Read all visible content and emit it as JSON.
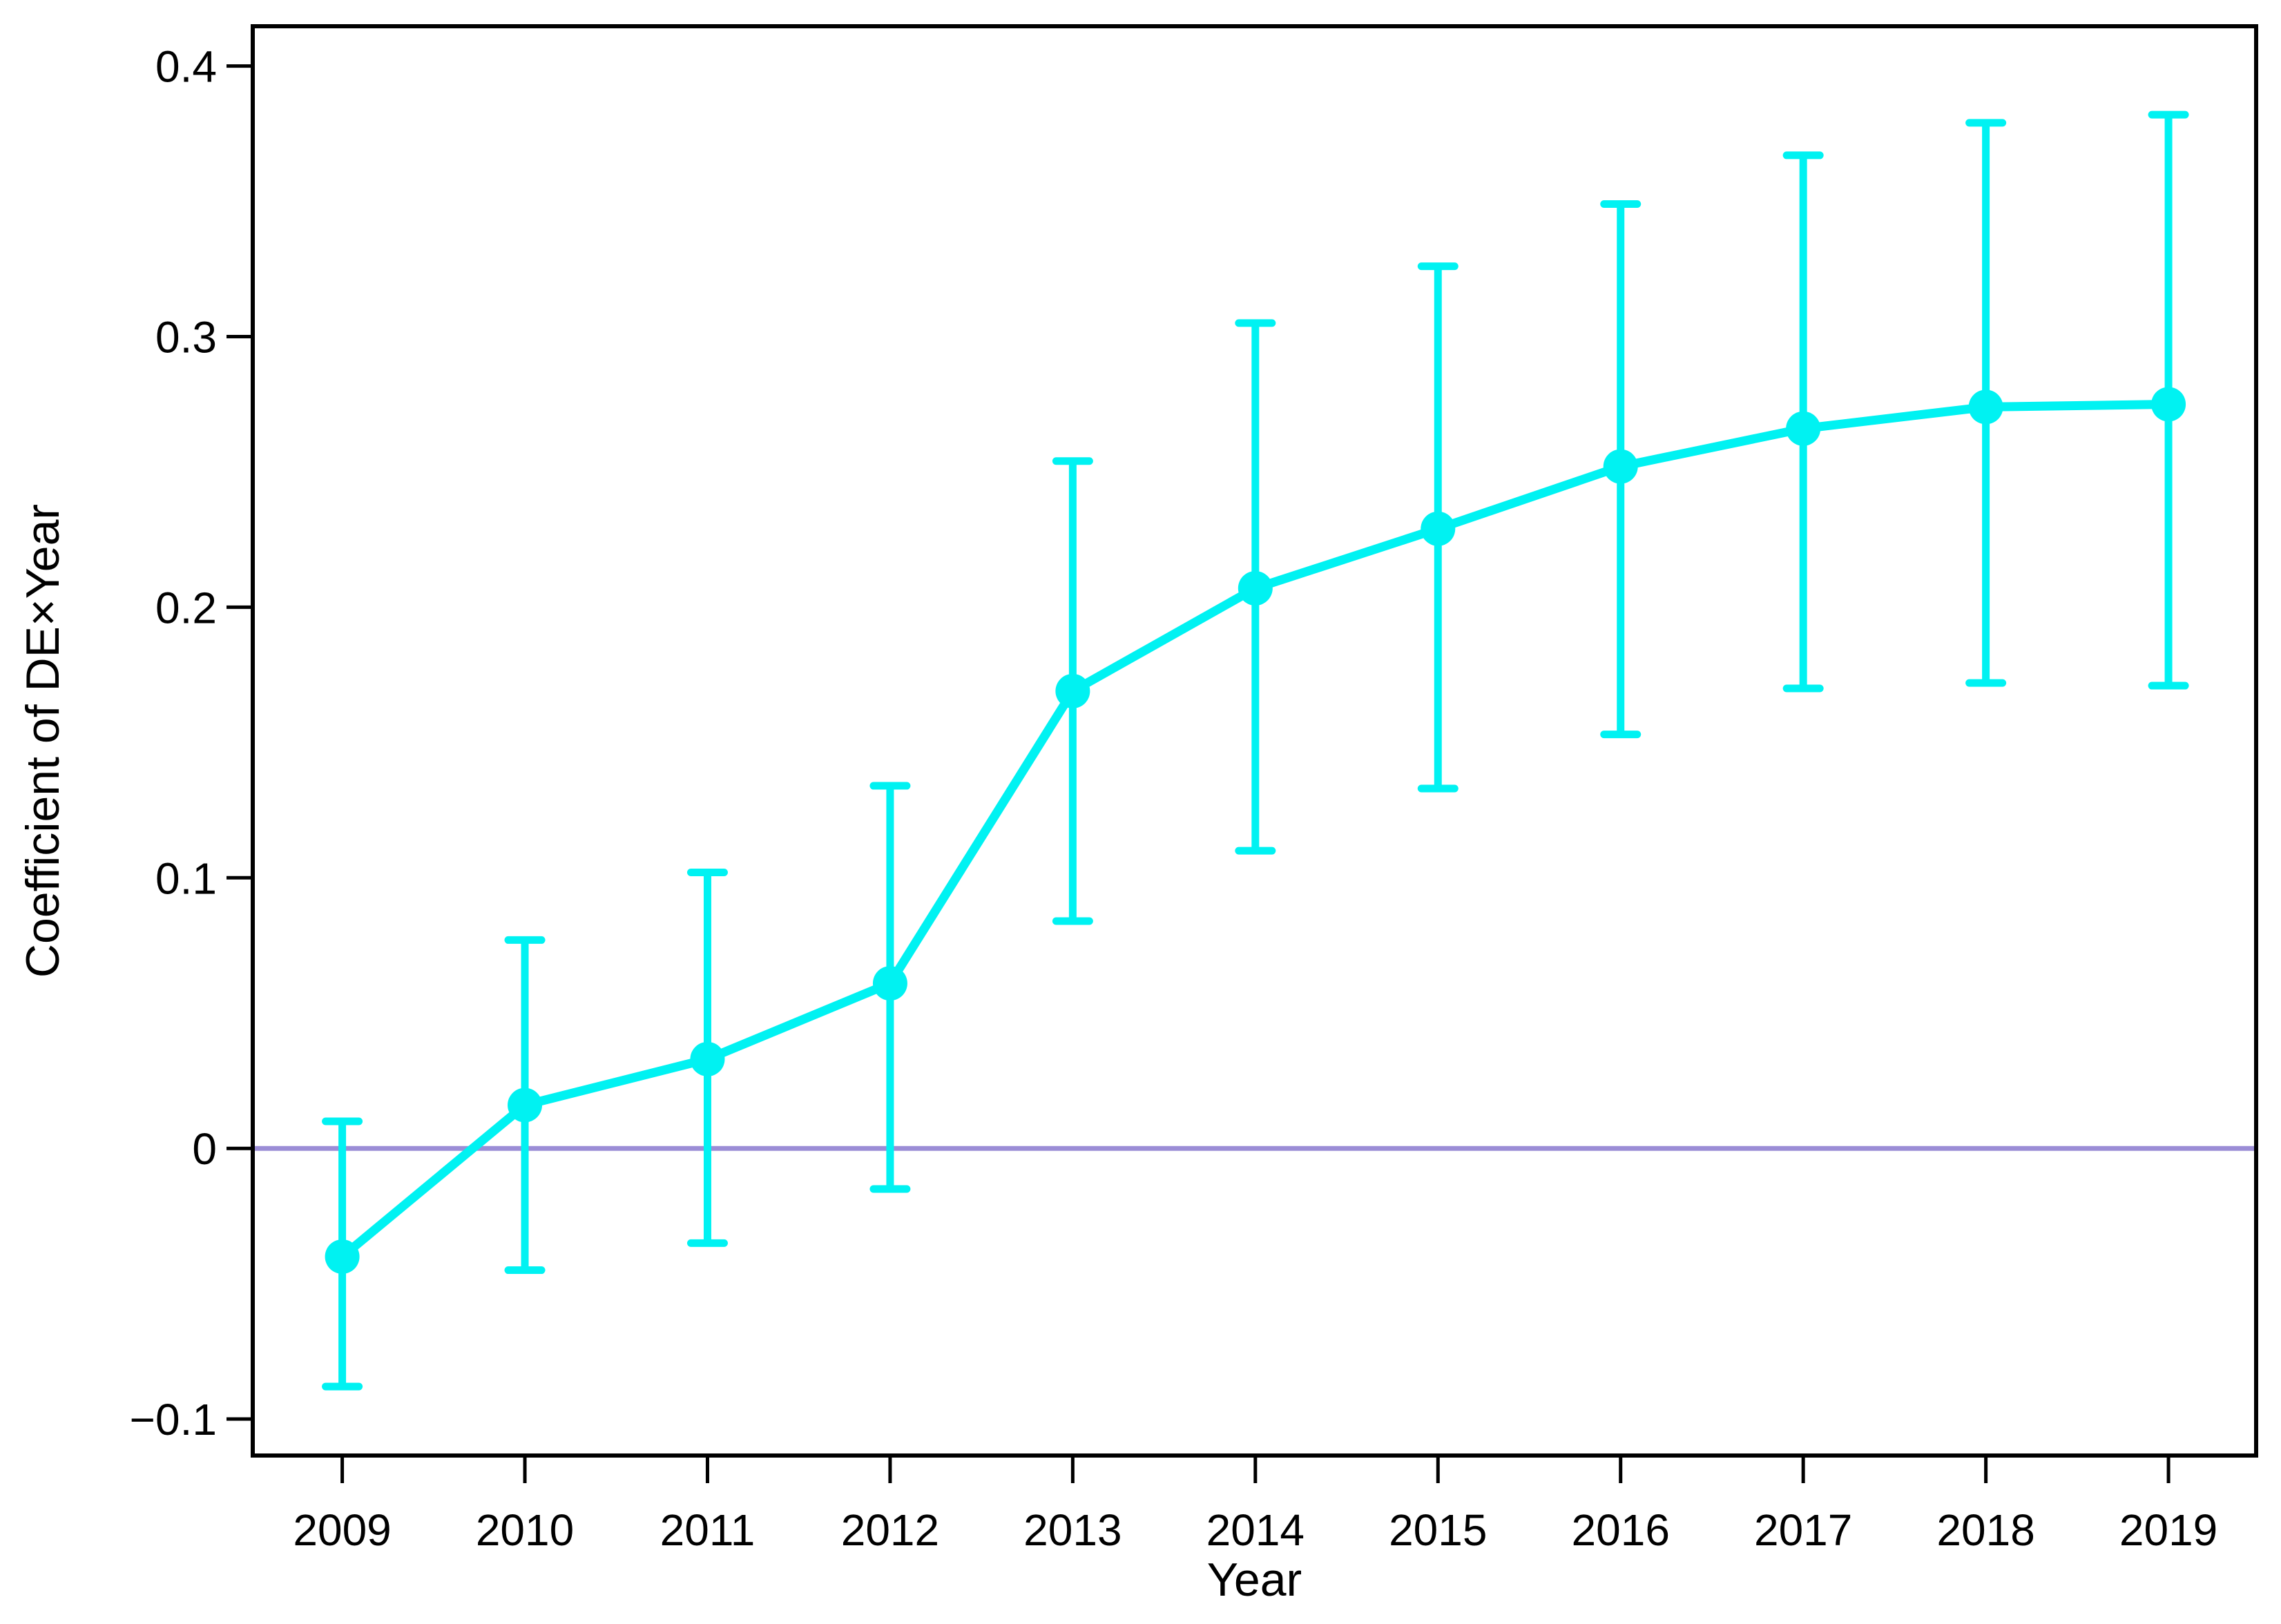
{
  "figure": {
    "background": "#ffffff",
    "axis_color": "#000000",
    "series_color": "#00f2f2",
    "zero_line_color": "#9b8dd6"
  },
  "chart_data": {
    "type": "line",
    "title": "",
    "xlabel": "Year",
    "ylabel": "Coefficient of DE×Year",
    "legend_position": "none",
    "grid": false,
    "marker": "circle",
    "error_bars": true,
    "zero_reference_line": 0,
    "x": [
      2009,
      2010,
      2011,
      2012,
      2013,
      2014,
      2015,
      2016,
      2017,
      2018,
      2019
    ],
    "x_tick_labels": [
      "2009",
      "2010",
      "2011",
      "2012",
      "2013",
      "2014",
      "2015",
      "2016",
      "2017",
      "2018",
      "2019"
    ],
    "series": [
      {
        "name": "Coefficient of DE×Year",
        "values": [
          -0.04,
          0.016,
          0.033,
          0.061,
          0.169,
          0.207,
          0.229,
          0.252,
          0.266,
          0.274,
          0.275
        ],
        "ci_low": [
          -0.088,
          -0.045,
          -0.035,
          -0.015,
          0.084,
          0.11,
          0.133,
          0.153,
          0.17,
          0.172,
          0.171
        ],
        "ci_high": [
          0.01,
          0.077,
          0.102,
          0.134,
          0.254,
          0.305,
          0.326,
          0.349,
          0.367,
          0.379,
          0.382
        ]
      }
    ],
    "y_ticks": [
      0.4,
      0.3,
      0.2,
      0.1,
      0,
      -0.1
    ],
    "y_tick_labels": [
      "0.4",
      "0.3",
      "0.2",
      "0.1",
      "0",
      "−0.1"
    ],
    "ylim": [
      -0.1135,
      0.4147
    ],
    "xlim": [
      2008.51,
      2019.48
    ]
  }
}
